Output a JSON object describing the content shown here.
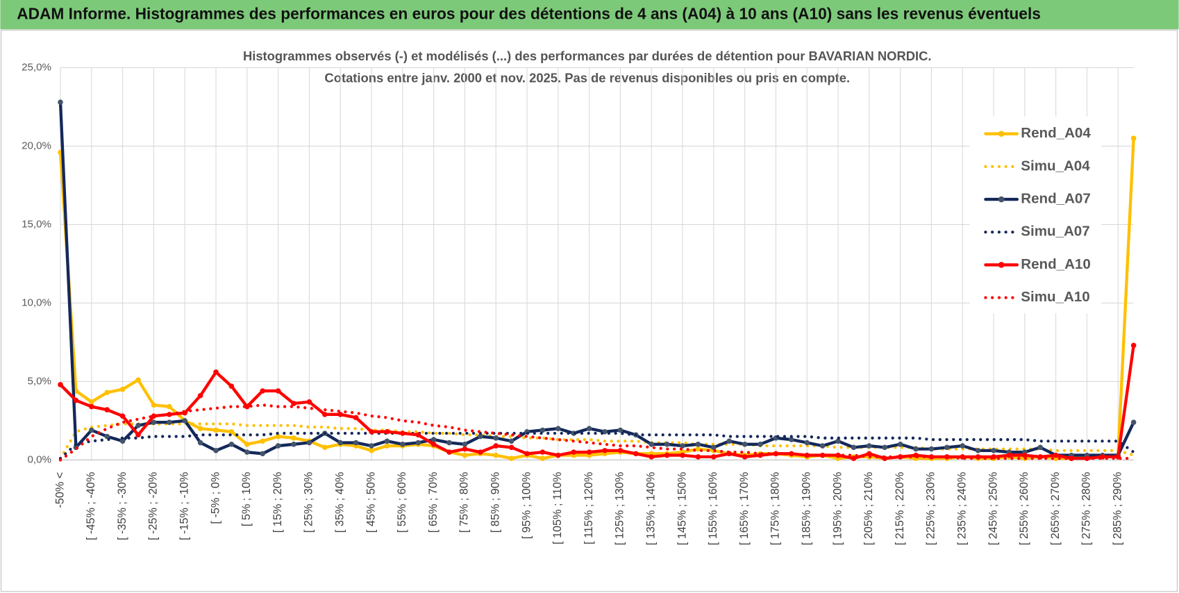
{
  "header": "ADAM Informe. Histogrammes des performances en euros pour des détentions de 4 ans (A04) à 10 ans (A10) sans les revenus éventuels",
  "chart_data": {
    "type": "line",
    "title": "Histogrammes observés (-) et modélisés (...) des performances par durées de détention pour BAVARIAN NORDIC.",
    "subtitle": "Cotations entre janv. 2000 et nov. 2025. Pas de revenus disponibles ou pris en compte.",
    "categories": [
      "-50% <",
      null,
      "[ -45% ; -40%",
      null,
      "[ -35% ; -30%",
      null,
      "[ -25% ; -20%",
      null,
      "[ -15% ; -10%",
      null,
      "[ -5% ; 0%",
      null,
      "[ 5% ; 10%",
      null,
      "[ 15% ; 20%",
      null,
      "[ 25% ; 30%",
      null,
      "[ 35% ; 40%",
      null,
      "[ 45% ; 50%",
      null,
      "[ 55% ; 60%",
      null,
      "[ 65% ; 70%",
      null,
      "[ 75% ; 80%",
      null,
      "[ 85% ; 90%",
      null,
      "[ 95% ; 100%",
      null,
      "[ 105% ; 110%",
      null,
      "[ 115% ; 120%",
      null,
      "[ 125% ; 130%",
      null,
      "[ 135% ; 140%",
      null,
      "[ 145% ; 150%",
      null,
      "[ 155% ; 160%",
      null,
      "[ 165% ; 170%",
      null,
      "[ 175% ; 180%",
      null,
      "[ 185% ; 190%",
      null,
      "[ 195% ; 200%",
      null,
      "[ 205% ; 210%",
      null,
      "[ 215% ; 220%",
      null,
      "[ 225% ; 230%",
      null,
      "[ 235% ; 240%",
      null,
      "[ 245% ; 250%",
      null,
      "[ 255% ; 260%",
      null,
      "[ 265% ; 270%",
      null,
      "[ 275% ; 280%",
      null,
      "[ 285% ; 290%",
      null
    ],
    "ylim": [
      0,
      25
    ],
    "yticks": [
      {
        "value": 0,
        "label": "0,0%"
      },
      {
        "value": 5,
        "label": "5,0%"
      },
      {
        "value": 10,
        "label": "10,0%"
      },
      {
        "value": 15,
        "label": "15,0%"
      },
      {
        "value": 20,
        "label": "20,0%"
      },
      {
        "value": 25,
        "label": "25,0%"
      }
    ],
    "grid": true,
    "legend": "right",
    "series": [
      {
        "name": "Rend_A04",
        "color": "#ffc000",
        "style": "solid",
        "markers": true,
        "values": [
          19.6,
          4.4,
          3.7,
          4.3,
          4.5,
          5.1,
          3.5,
          3.4,
          2.5,
          2.0,
          1.9,
          1.8,
          1.0,
          1.2,
          1.5,
          1.4,
          1.2,
          0.8,
          1.0,
          0.9,
          0.6,
          0.9,
          0.9,
          1.0,
          0.9,
          0.5,
          0.3,
          0.4,
          0.3,
          0.1,
          0.3,
          0.1,
          0.3,
          0.3,
          0.3,
          0.4,
          0.5,
          0.4,
          0.4,
          0.4,
          0.5,
          0.7,
          0.6,
          0.4,
          0.3,
          0.4,
          0.4,
          0.3,
          0.2,
          0.3,
          0.1,
          0.2,
          0.2,
          0.1,
          0.2,
          0.1,
          0.1,
          0.1,
          0.2,
          0.1,
          0.1,
          0.2,
          0.1,
          0.2,
          0.1,
          0.1,
          0.2,
          0.2,
          0.3,
          20.5
        ]
      },
      {
        "name": "Simu_A04",
        "color": "#ffc000",
        "style": "dotted",
        "markers": false,
        "values": [
          0.1,
          1.8,
          2.1,
          2.2,
          2.3,
          2.3,
          2.3,
          2.3,
          2.3,
          2.3,
          2.3,
          2.3,
          2.2,
          2.2,
          2.2,
          2.2,
          2.1,
          2.1,
          2.0,
          2.0,
          1.9,
          1.9,
          1.8,
          1.8,
          1.7,
          1.7,
          1.6,
          1.6,
          1.5,
          1.5,
          1.4,
          1.4,
          1.3,
          1.3,
          1.3,
          1.2,
          1.2,
          1.2,
          1.1,
          1.1,
          1.1,
          1.0,
          1.0,
          1.0,
          1.0,
          0.9,
          0.9,
          0.9,
          0.9,
          0.9,
          0.8,
          0.8,
          0.8,
          0.8,
          0.8,
          0.8,
          0.7,
          0.7,
          0.7,
          0.7,
          0.7,
          0.7,
          0.7,
          0.7,
          0.6,
          0.6,
          0.6,
          0.6,
          0.6,
          0.3
        ]
      },
      {
        "name": "Rend_A07",
        "color": "#14285a",
        "style": "solid",
        "markers": true,
        "values": [
          22.8,
          0.8,
          1.9,
          1.5,
          1.2,
          2.2,
          2.4,
          2.4,
          2.5,
          1.1,
          0.6,
          1.0,
          0.5,
          0.4,
          0.9,
          1.0,
          1.1,
          1.7,
          1.1,
          1.1,
          0.9,
          1.2,
          1.0,
          1.1,
          1.3,
          1.1,
          1.0,
          1.5,
          1.4,
          1.2,
          1.8,
          1.9,
          2.0,
          1.7,
          2.0,
          1.8,
          1.9,
          1.6,
          1.0,
          1.0,
          0.9,
          1.0,
          0.8,
          1.2,
          1.0,
          1.0,
          1.4,
          1.3,
          1.1,
          0.9,
          1.2,
          0.8,
          0.9,
          0.8,
          1.0,
          0.7,
          0.7,
          0.8,
          0.9,
          0.6,
          0.6,
          0.5,
          0.5,
          0.8,
          0.3,
          0.3,
          0.3,
          0.3,
          0.3,
          2.4
        ]
      },
      {
        "name": "Simu_A07",
        "color": "#14285a",
        "style": "dotted",
        "markers": false,
        "values": [
          0.1,
          1.0,
          1.2,
          1.3,
          1.4,
          1.4,
          1.5,
          1.5,
          1.5,
          1.6,
          1.6,
          1.6,
          1.6,
          1.6,
          1.7,
          1.7,
          1.7,
          1.7,
          1.7,
          1.7,
          1.7,
          1.7,
          1.7,
          1.7,
          1.7,
          1.7,
          1.7,
          1.7,
          1.7,
          1.7,
          1.7,
          1.7,
          1.7,
          1.7,
          1.7,
          1.7,
          1.7,
          1.6,
          1.6,
          1.6,
          1.6,
          1.6,
          1.6,
          1.5,
          1.5,
          1.5,
          1.5,
          1.5,
          1.5,
          1.4,
          1.4,
          1.4,
          1.4,
          1.4,
          1.4,
          1.4,
          1.3,
          1.3,
          1.3,
          1.3,
          1.3,
          1.3,
          1.3,
          1.2,
          1.2,
          1.2,
          1.2,
          1.2,
          1.2,
          0.5
        ]
      },
      {
        "name": "Rend_A10",
        "color": "#ff0000",
        "style": "solid",
        "markers": true,
        "values": [
          4.8,
          3.8,
          3.4,
          3.2,
          2.8,
          1.6,
          2.8,
          2.9,
          3.0,
          4.1,
          5.6,
          4.7,
          3.4,
          4.4,
          4.4,
          3.6,
          3.7,
          2.9,
          2.9,
          2.7,
          1.8,
          1.8,
          1.7,
          1.6,
          1.0,
          0.5,
          0.7,
          0.5,
          0.9,
          0.8,
          0.4,
          0.5,
          0.3,
          0.5,
          0.5,
          0.6,
          0.6,
          0.4,
          0.2,
          0.3,
          0.3,
          0.2,
          0.2,
          0.4,
          0.2,
          0.3,
          0.4,
          0.4,
          0.3,
          0.3,
          0.3,
          0.1,
          0.4,
          0.1,
          0.2,
          0.3,
          0.2,
          0.2,
          0.2,
          0.2,
          0.2,
          0.3,
          0.3,
          0.2,
          0.3,
          0.1,
          0.1,
          0.2,
          0.2,
          7.3
        ]
      },
      {
        "name": "Simu_A10",
        "color": "#ff0000",
        "style": "dotted",
        "markers": false,
        "values": [
          0.0,
          0.7,
          1.5,
          2.0,
          2.4,
          2.6,
          2.8,
          2.9,
          3.1,
          3.2,
          3.3,
          3.4,
          3.4,
          3.5,
          3.4,
          3.4,
          3.3,
          3.2,
          3.1,
          3.0,
          2.8,
          2.7,
          2.5,
          2.4,
          2.2,
          2.1,
          1.9,
          1.8,
          1.7,
          1.6,
          1.5,
          1.4,
          1.3,
          1.2,
          1.1,
          1.0,
          0.9,
          0.9,
          0.8,
          0.7,
          0.7,
          0.6,
          0.6,
          0.5,
          0.5,
          0.4,
          0.4,
          0.4,
          0.3,
          0.3,
          0.3,
          0.3,
          0.2,
          0.2,
          0.2,
          0.2,
          0.2,
          0.2,
          0.1,
          0.1,
          0.1,
          0.1,
          0.1,
          0.1,
          0.1,
          0.1,
          0.1,
          0.1,
          0.1,
          0.1
        ]
      }
    ]
  }
}
